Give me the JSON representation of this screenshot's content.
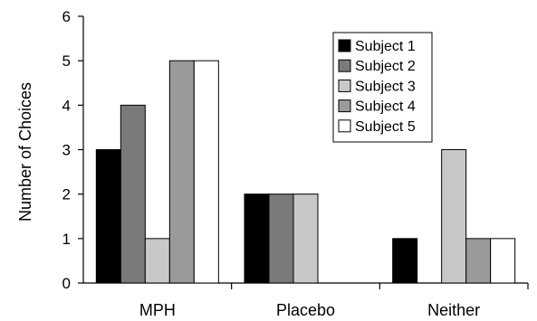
{
  "chart_data": {
    "type": "bar",
    "title": "",
    "xlabel": "",
    "ylabel": "Number of Choices",
    "ylim": [
      0,
      6
    ],
    "yticks": [
      0,
      1,
      2,
      3,
      4,
      5,
      6
    ],
    "categories": [
      "MPH",
      "Placebo",
      "Neither"
    ],
    "series": [
      {
        "name": "Subject 1",
        "color": "#000000",
        "values": [
          3,
          2,
          1
        ]
      },
      {
        "name": "Subject 2",
        "color": "#7a7a7a",
        "values": [
          4,
          2,
          0
        ]
      },
      {
        "name": "Subject 3",
        "color": "#c8c8c8",
        "values": [
          1,
          2,
          3
        ]
      },
      {
        "name": "Subject 4",
        "color": "#9a9a9a",
        "values": [
          5,
          0,
          1
        ]
      },
      {
        "name": "Subject 5",
        "color": "#ffffff",
        "values": [
          5,
          0,
          1
        ]
      }
    ],
    "grid": false,
    "legend_position": "top-right"
  }
}
